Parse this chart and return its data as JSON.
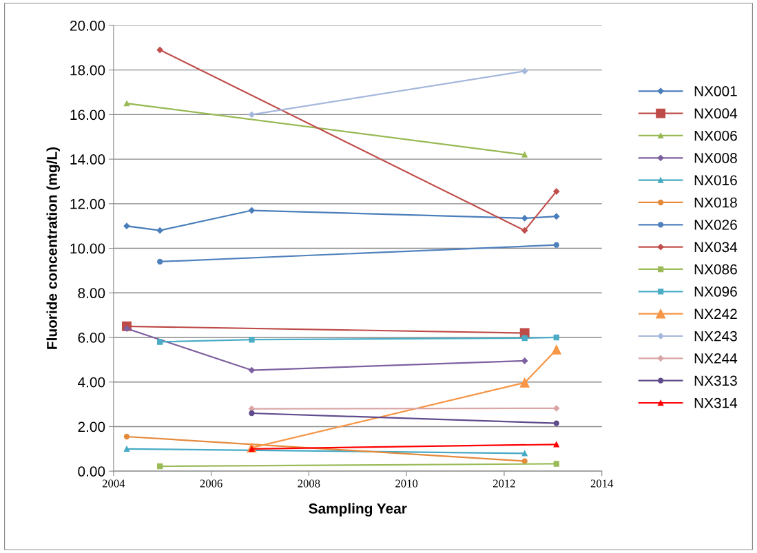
{
  "chart_data": {
    "type": "line",
    "xlabel": "Sampling Year",
    "ylabel": "Fluoride concentration (mg/L)",
    "xlim": [
      2004,
      2014
    ],
    "xticks": [
      2004,
      2006,
      2008,
      2010,
      2012,
      2014
    ],
    "ylim": [
      0,
      20
    ],
    "yticks": [
      {
        "value": 0,
        "label": "0.00"
      },
      {
        "value": 2,
        "label": "2.00"
      },
      {
        "value": 4,
        "label": "4.00"
      },
      {
        "value": 6,
        "label": "6.00"
      },
      {
        "value": 8,
        "label": "8.00"
      },
      {
        "value": 10,
        "label": "10.00"
      },
      {
        "value": 12,
        "label": "12.00"
      },
      {
        "value": 14,
        "label": "14.00"
      },
      {
        "value": 16,
        "label": "16.00"
      },
      {
        "value": 18,
        "label": "18.00"
      },
      {
        "value": 20,
        "label": "20.00"
      }
    ],
    "grid": "y",
    "legend": "right",
    "series": [
      {
        "name": "NX001",
        "color": "#4a7ebb",
        "marker": "diamond",
        "x": [
          2004.27,
          2004.95,
          2006.83,
          2012.42,
          2013.07
        ],
        "values": [
          11.0,
          10.8,
          11.7,
          11.35,
          11.43
        ]
      },
      {
        "name": "NX004",
        "color": "#be4b48",
        "marker": "square",
        "x": [
          2004.27,
          2012.42
        ],
        "values": [
          6.5,
          6.2
        ]
      },
      {
        "name": "NX006",
        "color": "#98b954",
        "marker": "triangle",
        "x": [
          2004.27,
          2012.42
        ],
        "values": [
          16.5,
          14.2
        ]
      },
      {
        "name": "NX008",
        "color": "#7d60a0",
        "marker": "diamond",
        "x": [
          2004.27,
          2006.83,
          2012.42
        ],
        "values": [
          6.4,
          4.53,
          4.95
        ]
      },
      {
        "name": "NX016",
        "color": "#46aac5",
        "marker": "triangle",
        "x": [
          2004.27,
          2012.42
        ],
        "values": [
          1.0,
          0.8
        ]
      },
      {
        "name": "NX018",
        "color": "#e58a3c",
        "marker": "circle",
        "x": [
          2004.27,
          2012.42
        ],
        "values": [
          1.55,
          0.45
        ]
      },
      {
        "name": "NX026",
        "color": "#4f81bd",
        "marker": "circle",
        "x": [
          2004.95,
          2013.07
        ],
        "values": [
          9.4,
          10.15
        ]
      },
      {
        "name": "NX034",
        "color": "#c0504d",
        "marker": "diamond",
        "x": [
          2004.95,
          2012.42,
          2013.07
        ],
        "values": [
          18.9,
          10.8,
          12.55
        ]
      },
      {
        "name": "NX086",
        "color": "#9bbb59",
        "marker": "square",
        "x": [
          2004.95,
          2013.07
        ],
        "values": [
          0.22,
          0.33
        ]
      },
      {
        "name": "NX096",
        "color": "#4bacc6",
        "marker": "square",
        "x": [
          2004.95,
          2006.83,
          2012.42,
          2013.07
        ],
        "values": [
          5.8,
          5.9,
          5.97,
          6.0
        ]
      },
      {
        "name": "NX242",
        "color": "#f79646",
        "marker": "triangle",
        "x": [
          2006.83,
          2012.42,
          2013.07
        ],
        "values": [
          1.05,
          3.97,
          5.45
        ]
      },
      {
        "name": "NX243",
        "color": "#a5b8dc",
        "marker": "diamond",
        "x": [
          2006.83,
          2012.42
        ],
        "values": [
          16.0,
          17.95
        ]
      },
      {
        "name": "NX244",
        "color": "#d9a6a5",
        "marker": "diamond",
        "x": [
          2006.83,
          2013.07
        ],
        "values": [
          2.8,
          2.82
        ]
      },
      {
        "name": "NX313",
        "color": "#5f4b8b",
        "marker": "circle",
        "x": [
          2006.83,
          2013.07
        ],
        "values": [
          2.6,
          2.15
        ]
      },
      {
        "name": "NX314",
        "color": "#ff0000",
        "marker": "triangle",
        "x": [
          2006.83,
          2013.07
        ],
        "values": [
          1.0,
          1.2
        ]
      }
    ]
  }
}
